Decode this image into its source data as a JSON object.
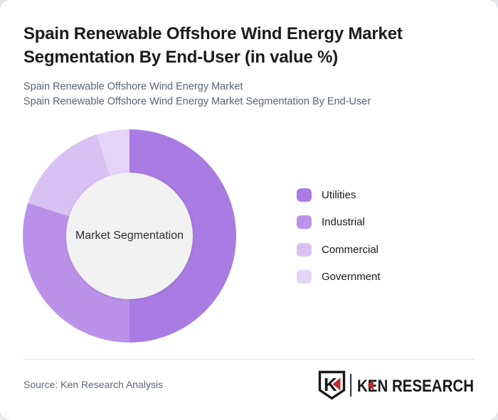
{
  "header": {
    "title": "Spain Renewable Offshore Wind Energy Market Segmentation By End-User (in value %)",
    "subtitles": [
      "Spain Renewable Offshore Wind Energy Market",
      "Spain Renewable Offshore Wind Energy Market Segmentation By End-User"
    ]
  },
  "chart_data": {
    "type": "pie",
    "variant": "donut",
    "title": "Spain Renewable Offshore Wind Energy Market Segmentation By End-User (in value %)",
    "center_label": "Market Segmentation",
    "categories": [
      "Utilities",
      "Industrial",
      "Commercial",
      "Government"
    ],
    "values": [
      50,
      30,
      15,
      5
    ],
    "unit": "value %",
    "colors": [
      "#a97ce3",
      "#bb92e9",
      "#d9c1f3",
      "#e4d5f7"
    ],
    "hole_color": "#f2f2f3",
    "legend_position": "right",
    "start_angle_deg": 0,
    "direction": "clockwise"
  },
  "footer": {
    "source_text": "Source: Ken Research Analysis",
    "logo": {
      "brand": "KEN RESEARCH",
      "mark_letter": "K"
    }
  },
  "theme": {
    "accent_dark": "#a97ce3",
    "accent_light": "#e4d5f7",
    "logo_red": "#bf2b30",
    "logo_black": "#17181a"
  }
}
